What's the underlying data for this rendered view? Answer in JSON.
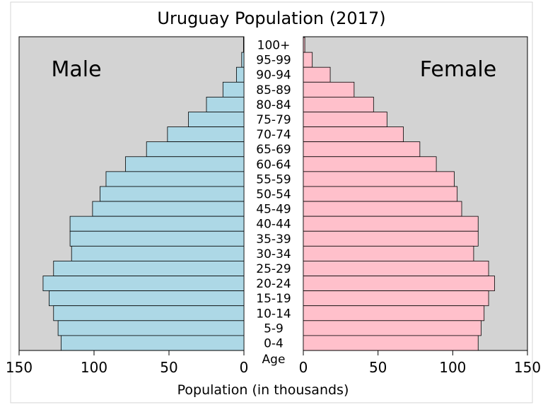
{
  "chart_data": {
    "type": "bar",
    "title": "Uruguay Population (2017)",
    "xlabel": "Population (in thousands)",
    "category_label": "Age",
    "xlim": [
      0,
      150
    ],
    "ticks": [
      0,
      50,
      100,
      150
    ],
    "tick_labels": [
      "0",
      "50",
      "100",
      "150"
    ],
    "grid": false,
    "background": "#d3d3d3",
    "categories": [
      "100+",
      "95-99",
      "90-94",
      "85-89",
      "80-84",
      "75-79",
      "70-74",
      "65-69",
      "60-64",
      "55-59",
      "50-54",
      "45-49",
      "40-44",
      "35-39",
      "30-34",
      "25-29",
      "20-24",
      "15-19",
      "10-14",
      "5-9",
      "0-4"
    ],
    "series": [
      {
        "name": "Male",
        "side": "left",
        "color": "#add8e6",
        "values": [
          0.3,
          1.5,
          5,
          14,
          25,
          37,
          51,
          65,
          79,
          92,
          96,
          101,
          116,
          116,
          115,
          127,
          134,
          130,
          127,
          124,
          122
        ]
      },
      {
        "name": "Female",
        "side": "right",
        "color": "#ffc0cb",
        "values": [
          1,
          6,
          18,
          34,
          47,
          56,
          67,
          78,
          89,
          101,
          103,
          106,
          117,
          117,
          114,
          124,
          128,
          124,
          121,
          119,
          117
        ]
      }
    ]
  }
}
